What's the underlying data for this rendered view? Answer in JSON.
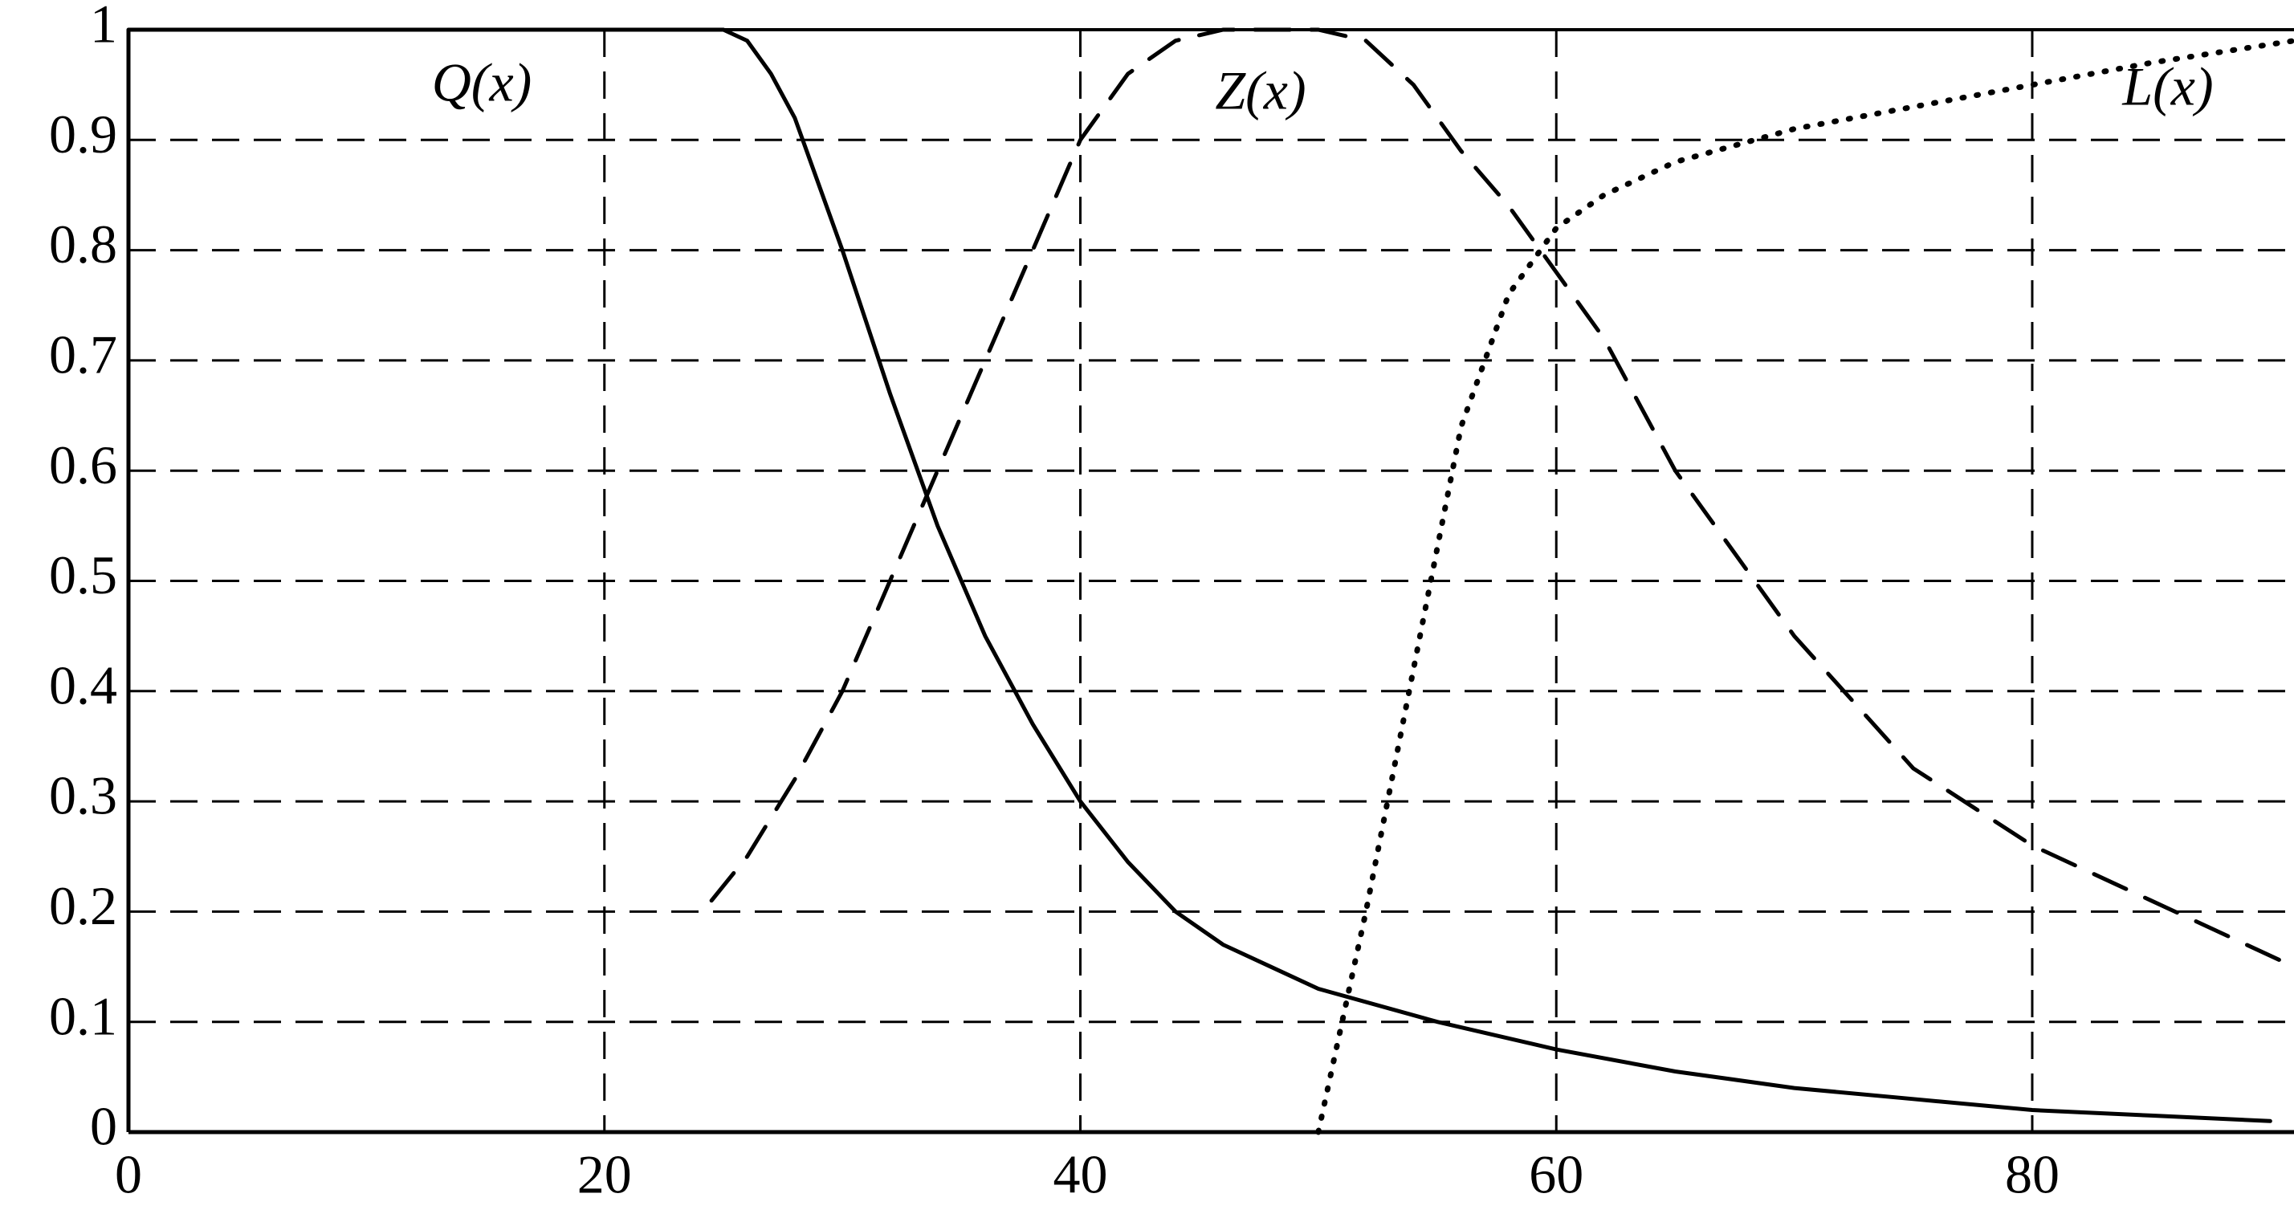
{
  "chart_data": {
    "type": "line",
    "xlim": [
      0,
      91
    ],
    "ylim": [
      0,
      1
    ],
    "xticks": [
      0,
      20,
      40,
      60,
      80
    ],
    "yticks": [
      0,
      0.1,
      0.2,
      0.3,
      0.4,
      0.5,
      0.6,
      0.7,
      0.8,
      0.9,
      1
    ],
    "grid": true,
    "series": [
      {
        "name": "Q(x)",
        "color": "#000000",
        "style": "solid",
        "x": [
          0,
          25,
          26,
          27,
          28,
          29,
          30,
          32,
          34,
          36,
          38,
          40,
          42,
          44,
          46,
          48,
          50,
          55,
          60,
          65,
          70,
          75,
          80,
          85,
          90
        ],
        "values": [
          1,
          1,
          0.99,
          0.96,
          0.92,
          0.86,
          0.8,
          0.67,
          0.55,
          0.45,
          0.37,
          0.3,
          0.245,
          0.2,
          0.17,
          0.15,
          0.13,
          0.1,
          0.075,
          0.055,
          0.04,
          0.03,
          0.02,
          0.015,
          0.01
        ]
      },
      {
        "name": "Z(x)",
        "color": "#000000",
        "style": "dashed",
        "x": [
          24.5,
          26,
          28,
          30,
          32,
          34,
          36,
          38,
          40,
          42,
          44,
          46,
          48,
          50,
          52,
          54,
          56,
          58,
          60,
          62,
          65,
          70,
          75,
          80,
          85,
          91
        ],
        "values": [
          0.21,
          0.25,
          0.32,
          0.4,
          0.5,
          0.6,
          0.7,
          0.8,
          0.9,
          0.96,
          0.99,
          1,
          1,
          1,
          0.99,
          0.95,
          0.89,
          0.84,
          0.78,
          0.72,
          0.6,
          0.45,
          0.33,
          0.26,
          0.21,
          0.15
        ]
      },
      {
        "name": "L(x)",
        "color": "#000000",
        "style": "dotted",
        "x": [
          50,
          52,
          54,
          56,
          58,
          60,
          62,
          65,
          70,
          75,
          80,
          85,
          91
        ],
        "values": [
          0,
          0.2,
          0.42,
          0.64,
          0.76,
          0.82,
          0.85,
          0.88,
          0.91,
          0.93,
          0.95,
          0.97,
          0.99
        ]
      }
    ]
  }
}
